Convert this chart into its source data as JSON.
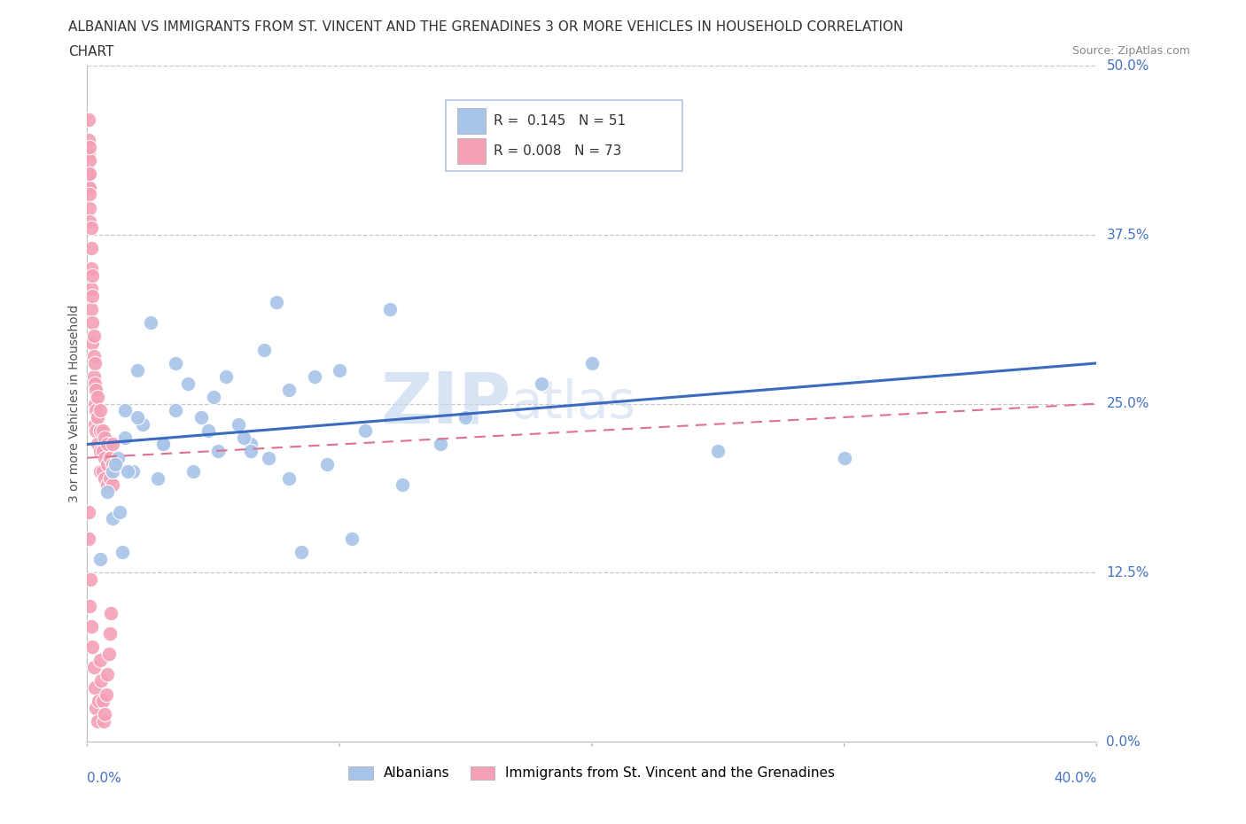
{
  "title_line1": "ALBANIAN VS IMMIGRANTS FROM ST. VINCENT AND THE GRENADINES 3 OR MORE VEHICLES IN HOUSEHOLD CORRELATION",
  "title_line2": "CHART",
  "source_text": "Source: ZipAtlas.com",
  "xlabel_bottom_left": "0.0%",
  "xlabel_bottom_right": "40.0%",
  "ylabel": "3 or more Vehicles in Household",
  "ytick_labels": [
    "0.0%",
    "12.5%",
    "25.0%",
    "37.5%",
    "50.0%"
  ],
  "ytick_values": [
    0.0,
    12.5,
    25.0,
    37.5,
    50.0
  ],
  "xmin": 0.0,
  "xmax": 40.0,
  "ymin": 0.0,
  "ymax": 50.0,
  "legend_entry1_label": "Albanians",
  "legend_entry2_label": "Immigrants from St. Vincent and the Grenadines",
  "blue_R": "0.145",
  "blue_N": "51",
  "pink_R": "0.008",
  "pink_N": "73",
  "blue_color": "#a8c4e8",
  "pink_color": "#f4a0b5",
  "blue_line_color": "#3a6bbf",
  "pink_line_color": "#e07090",
  "blue_line_start_y": 22.0,
  "blue_line_end_y": 28.0,
  "pink_line_start_y": 21.0,
  "pink_line_end_y": 25.0,
  "alb_x": [
    0.5,
    0.8,
    1.0,
    1.2,
    1.5,
    1.5,
    1.8,
    2.0,
    2.5,
    3.0,
    3.5,
    4.0,
    4.5,
    5.0,
    5.5,
    6.0,
    6.5,
    7.0,
    7.5,
    8.0,
    9.0,
    10.0,
    11.0,
    12.0,
    14.0,
    15.0,
    18.0,
    20.0,
    25.0,
    30.0,
    1.0,
    1.3,
    1.6,
    2.2,
    2.8,
    3.5,
    4.2,
    5.2,
    6.2,
    7.2,
    8.5,
    9.5,
    10.5,
    12.5,
    1.1,
    1.4,
    2.0,
    3.0,
    4.8,
    6.5,
    8.0
  ],
  "alb_y": [
    13.5,
    18.5,
    20.0,
    21.0,
    22.5,
    24.5,
    20.0,
    27.5,
    31.0,
    22.0,
    28.0,
    26.5,
    24.0,
    25.5,
    27.0,
    23.5,
    22.0,
    29.0,
    32.5,
    26.0,
    27.0,
    27.5,
    23.0,
    32.0,
    22.0,
    24.0,
    26.5,
    28.0,
    21.5,
    21.0,
    16.5,
    17.0,
    20.0,
    23.5,
    19.5,
    24.5,
    20.0,
    21.5,
    22.5,
    21.0,
    14.0,
    20.5,
    15.0,
    19.0,
    20.5,
    14.0,
    24.0,
    22.0,
    23.0,
    21.5,
    19.5
  ],
  "svg_x": [
    0.05,
    0.05,
    0.05,
    0.05,
    0.05,
    0.08,
    0.08,
    0.08,
    0.1,
    0.1,
    0.1,
    0.1,
    0.15,
    0.15,
    0.15,
    0.15,
    0.15,
    0.2,
    0.2,
    0.2,
    0.2,
    0.25,
    0.25,
    0.25,
    0.3,
    0.3,
    0.3,
    0.3,
    0.35,
    0.35,
    0.35,
    0.4,
    0.4,
    0.4,
    0.5,
    0.5,
    0.5,
    0.5,
    0.6,
    0.6,
    0.6,
    0.7,
    0.7,
    0.7,
    0.8,
    0.8,
    0.8,
    0.9,
    0.9,
    1.0,
    1.0,
    1.0,
    0.1,
    0.15,
    0.2,
    0.25,
    0.3,
    0.35,
    0.4,
    0.45,
    0.5,
    0.55,
    0.6,
    0.65,
    0.7,
    0.75,
    0.8,
    0.85,
    0.9,
    0.95,
    0.05,
    0.07,
    0.12
  ],
  "svg_y": [
    46.0,
    44.5,
    43.5,
    42.0,
    41.0,
    43.0,
    41.0,
    39.5,
    44.0,
    42.0,
    40.5,
    38.5,
    38.0,
    36.5,
    35.0,
    33.5,
    32.0,
    34.5,
    33.0,
    31.0,
    29.5,
    30.0,
    28.5,
    27.0,
    28.0,
    26.5,
    25.0,
    23.5,
    26.0,
    24.5,
    23.0,
    25.5,
    24.0,
    22.0,
    24.5,
    23.0,
    21.5,
    20.0,
    23.0,
    21.5,
    20.0,
    22.5,
    21.0,
    19.5,
    22.0,
    20.5,
    19.0,
    21.0,
    19.5,
    20.5,
    22.0,
    19.0,
    10.0,
    8.5,
    7.0,
    5.5,
    4.0,
    2.5,
    1.5,
    3.0,
    6.0,
    4.5,
    3.0,
    1.5,
    2.0,
    3.5,
    5.0,
    6.5,
    8.0,
    9.5,
    15.0,
    17.0,
    12.0
  ]
}
